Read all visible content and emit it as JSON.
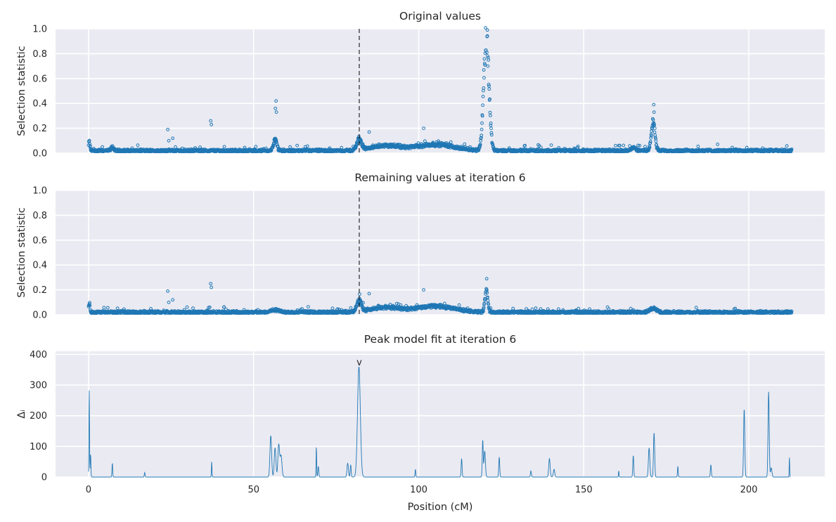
{
  "colors": {
    "panel_bg": "#eaeaf2",
    "grid": "#ffffff",
    "series": "#1f77b4",
    "marker_line": "#000000"
  },
  "chart_data": [
    {
      "type": "scatter",
      "title": "Original values",
      "ylabel": "Selection statistic",
      "xlim": [
        -10,
        223
      ],
      "ylim": [
        0,
        1.0
      ],
      "yticks": [
        "0.0",
        "0.2",
        "0.4",
        "0.6",
        "0.8",
        "1.0"
      ],
      "xticks": [
        0,
        50,
        100,
        150,
        200
      ],
      "show_x_tick_labels": false,
      "grid": true,
      "vline_x": 82,
      "x_range": [
        0,
        213
      ],
      "baseline": 0.02,
      "peaks": [
        {
          "x": 0.2,
          "h": 0.07,
          "w": 0.3
        },
        {
          "x": 7.2,
          "h": 0.03,
          "w": 0.5
        },
        {
          "x": 56.5,
          "h": 0.09,
          "w": 0.7
        },
        {
          "x": 82,
          "h": 0.09,
          "w": 1.0
        },
        {
          "x": 90,
          "h": 0.04,
          "w": 6
        },
        {
          "x": 105,
          "h": 0.05,
          "w": 8
        },
        {
          "x": 120.5,
          "h": 0.92,
          "w": 1.1
        },
        {
          "x": 165,
          "h": 0.03,
          "w": 0.8
        },
        {
          "x": 171,
          "h": 0.22,
          "w": 0.8
        }
      ],
      "outliers": [
        {
          "x": 24,
          "y": 0.19
        },
        {
          "x": 24.3,
          "y": 0.1
        },
        {
          "x": 25.5,
          "y": 0.12
        },
        {
          "x": 37,
          "y": 0.26
        },
        {
          "x": 37.2,
          "y": 0.23
        },
        {
          "x": 56.8,
          "y": 0.42
        },
        {
          "x": 56.6,
          "y": 0.36
        },
        {
          "x": 56.9,
          "y": 0.33
        },
        {
          "x": 85,
          "y": 0.17
        },
        {
          "x": 101.5,
          "y": 0.2
        },
        {
          "x": 120.8,
          "y": 0.99
        },
        {
          "x": 171.2,
          "y": 0.39
        },
        {
          "x": 171.3,
          "y": 0.33
        }
      ]
    },
    {
      "type": "scatter",
      "title": "Remaining values at iteration 6",
      "ylabel": "Selection statistic",
      "xlim": [
        -10,
        223
      ],
      "ylim": [
        0,
        1.0
      ],
      "yticks": [
        "0.0",
        "0.2",
        "0.4",
        "0.6",
        "0.8",
        "1.0"
      ],
      "xticks": [
        0,
        50,
        100,
        150,
        200
      ],
      "show_x_tick_labels": false,
      "grid": true,
      "vline_x": 82,
      "x_range": [
        0,
        213
      ],
      "baseline": 0.02,
      "peaks": [
        {
          "x": 0.2,
          "h": 0.07,
          "w": 0.3
        },
        {
          "x": 56.5,
          "h": 0.02,
          "w": 2
        },
        {
          "x": 82,
          "h": 0.09,
          "w": 1.0
        },
        {
          "x": 90,
          "h": 0.04,
          "w": 6
        },
        {
          "x": 105,
          "h": 0.05,
          "w": 8
        },
        {
          "x": 120.5,
          "h": 0.18,
          "w": 0.6
        },
        {
          "x": 171,
          "h": 0.03,
          "w": 1.5
        }
      ],
      "outliers": [
        {
          "x": 24,
          "y": 0.19
        },
        {
          "x": 24.3,
          "y": 0.1
        },
        {
          "x": 25.5,
          "y": 0.12
        },
        {
          "x": 37,
          "y": 0.25
        },
        {
          "x": 37.2,
          "y": 0.22
        },
        {
          "x": 85,
          "y": 0.17
        },
        {
          "x": 101.5,
          "y": 0.2
        },
        {
          "x": 120.6,
          "y": 0.29
        }
      ]
    },
    {
      "type": "line",
      "title": "Peak model fit at iteration 6",
      "ylabel": "Δᵢ",
      "xlabel": "Position (cM)",
      "xlim": [
        -10,
        223
      ],
      "ylim": [
        0,
        410
      ],
      "yticks": [
        "0",
        "100",
        "200",
        "300",
        "400"
      ],
      "xticks": [
        0,
        50,
        100,
        150,
        200
      ],
      "show_x_tick_labels": true,
      "grid": true,
      "marker": {
        "x": 82,
        "y": 360,
        "text": "v"
      },
      "spikes": [
        {
          "x": 0.2,
          "h": 285,
          "w": 0.12
        },
        {
          "x": 0.6,
          "h": 75,
          "w": 0.15
        },
        {
          "x": 7.2,
          "h": 45,
          "w": 0.15
        },
        {
          "x": 17,
          "h": 15,
          "w": 0.15
        },
        {
          "x": 37.3,
          "h": 50,
          "w": 0.12
        },
        {
          "x": 55.2,
          "h": 135,
          "w": 0.35
        },
        {
          "x": 56.5,
          "h": 95,
          "w": 0.35
        },
        {
          "x": 57.6,
          "h": 105,
          "w": 0.35
        },
        {
          "x": 58.3,
          "h": 70,
          "w": 0.4
        },
        {
          "x": 69,
          "h": 100,
          "w": 0.12
        },
        {
          "x": 69.6,
          "h": 35,
          "w": 0.2
        },
        {
          "x": 78.5,
          "h": 45,
          "w": 0.3
        },
        {
          "x": 79.4,
          "h": 40,
          "w": 0.2
        },
        {
          "x": 81.9,
          "h": 360,
          "w": 0.6
        },
        {
          "x": 99,
          "h": 25,
          "w": 0.15
        },
        {
          "x": 113,
          "h": 60,
          "w": 0.2
        },
        {
          "x": 119.4,
          "h": 120,
          "w": 0.2
        },
        {
          "x": 120,
          "h": 85,
          "w": 0.3
        },
        {
          "x": 124.4,
          "h": 65,
          "w": 0.2
        },
        {
          "x": 134,
          "h": 20,
          "w": 0.2
        },
        {
          "x": 139.6,
          "h": 60,
          "w": 0.3
        },
        {
          "x": 141,
          "h": 25,
          "w": 0.3
        },
        {
          "x": 160.6,
          "h": 20,
          "w": 0.12
        },
        {
          "x": 165,
          "h": 70,
          "w": 0.2
        },
        {
          "x": 169.8,
          "h": 95,
          "w": 0.3
        },
        {
          "x": 171.3,
          "h": 145,
          "w": 0.25
        },
        {
          "x": 178.5,
          "h": 35,
          "w": 0.15
        },
        {
          "x": 188.5,
          "h": 40,
          "w": 0.2
        },
        {
          "x": 198.6,
          "h": 222,
          "w": 0.25
        },
        {
          "x": 206,
          "h": 278,
          "w": 0.25
        },
        {
          "x": 206.8,
          "h": 30,
          "w": 0.3
        },
        {
          "x": 212.3,
          "h": 65,
          "w": 0.1
        }
      ]
    }
  ]
}
